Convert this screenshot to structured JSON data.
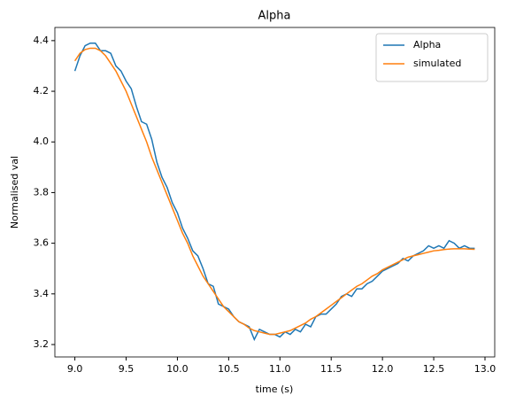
{
  "chart_data": {
    "type": "line",
    "title": "Alpha",
    "xlabel": "time (s)",
    "ylabel": "Normalised val",
    "x": [
      9.0,
      9.05,
      9.1,
      9.15,
      9.2,
      9.25,
      9.3,
      9.35,
      9.4,
      9.45,
      9.5,
      9.55,
      9.6,
      9.65,
      9.7,
      9.75,
      9.8,
      9.85,
      9.9,
      9.95,
      10.0,
      10.05,
      10.1,
      10.15,
      10.2,
      10.25,
      10.3,
      10.35,
      10.4,
      10.45,
      10.5,
      10.55,
      10.6,
      10.65,
      10.7,
      10.75,
      10.8,
      10.85,
      10.9,
      10.95,
      11.0,
      11.05,
      11.1,
      11.15,
      11.2,
      11.25,
      11.3,
      11.35,
      11.4,
      11.45,
      11.5,
      11.55,
      11.6,
      11.65,
      11.7,
      11.75,
      11.8,
      11.85,
      11.9,
      11.95,
      12.0,
      12.05,
      12.1,
      12.15,
      12.2,
      12.25,
      12.3,
      12.35,
      12.4,
      12.45,
      12.5,
      12.55,
      12.6,
      12.65,
      12.7,
      12.75,
      12.8,
      12.85,
      12.9
    ],
    "series": [
      {
        "name": "Alpha",
        "color": "#1f77b4",
        "values": [
          4.28,
          4.34,
          4.38,
          4.39,
          4.39,
          4.36,
          4.36,
          4.35,
          4.3,
          4.28,
          4.24,
          4.21,
          4.14,
          4.08,
          4.07,
          4.01,
          3.92,
          3.86,
          3.82,
          3.76,
          3.72,
          3.66,
          3.62,
          3.57,
          3.55,
          3.5,
          3.44,
          3.43,
          3.36,
          3.35,
          3.34,
          3.31,
          3.29,
          3.28,
          3.27,
          3.22,
          3.26,
          3.25,
          3.24,
          3.24,
          3.23,
          3.25,
          3.24,
          3.26,
          3.25,
          3.28,
          3.27,
          3.31,
          3.32,
          3.32,
          3.34,
          3.36,
          3.39,
          3.4,
          3.39,
          3.42,
          3.42,
          3.44,
          3.45,
          3.47,
          3.49,
          3.5,
          3.51,
          3.52,
          3.54,
          3.53,
          3.55,
          3.56,
          3.57,
          3.59,
          3.58,
          3.59,
          3.58,
          3.61,
          3.6,
          3.58,
          3.59,
          3.58,
          3.58
        ]
      },
      {
        "name": "simulated",
        "color": "#ff7f0e",
        "values": [
          4.32,
          4.35,
          4.365,
          4.37,
          4.37,
          4.36,
          4.34,
          4.31,
          4.28,
          4.24,
          4.2,
          4.15,
          4.1,
          4.05,
          4.0,
          3.94,
          3.89,
          3.84,
          3.79,
          3.74,
          3.69,
          3.64,
          3.6,
          3.55,
          3.51,
          3.47,
          3.44,
          3.41,
          3.38,
          3.35,
          3.33,
          3.31,
          3.29,
          3.28,
          3.265,
          3.255,
          3.25,
          3.245,
          3.24,
          3.24,
          3.245,
          3.25,
          3.255,
          3.265,
          3.275,
          3.285,
          3.3,
          3.31,
          3.325,
          3.34,
          3.355,
          3.37,
          3.385,
          3.4,
          3.415,
          3.43,
          3.44,
          3.455,
          3.47,
          3.48,
          3.495,
          3.505,
          3.515,
          3.525,
          3.535,
          3.545,
          3.55,
          3.555,
          3.56,
          3.565,
          3.57,
          3.572,
          3.575,
          3.577,
          3.578,
          3.578,
          3.578,
          3.577,
          3.576
        ]
      }
    ],
    "xlim": [
      8.805,
      13.095
    ],
    "xticks": [
      {
        "value": 9,
        "label": "9.0"
      },
      9.5,
      {
        "value": 10,
        "label": "10.0"
      },
      10.5,
      {
        "value": 11,
        "label": "11.0"
      },
      11.5,
      {
        "value": 12,
        "label": "12.0"
      },
      12.5,
      {
        "value": 13,
        "label": "13.0"
      }
    ],
    "ylim": [
      3.151,
      4.452
    ],
    "yticks": [
      3.2,
      3.4,
      3.6,
      3.8,
      {
        "value": 4,
        "label": "4.0"
      },
      4.2,
      4.4
    ],
    "legend": "upper right",
    "grid": false
  }
}
